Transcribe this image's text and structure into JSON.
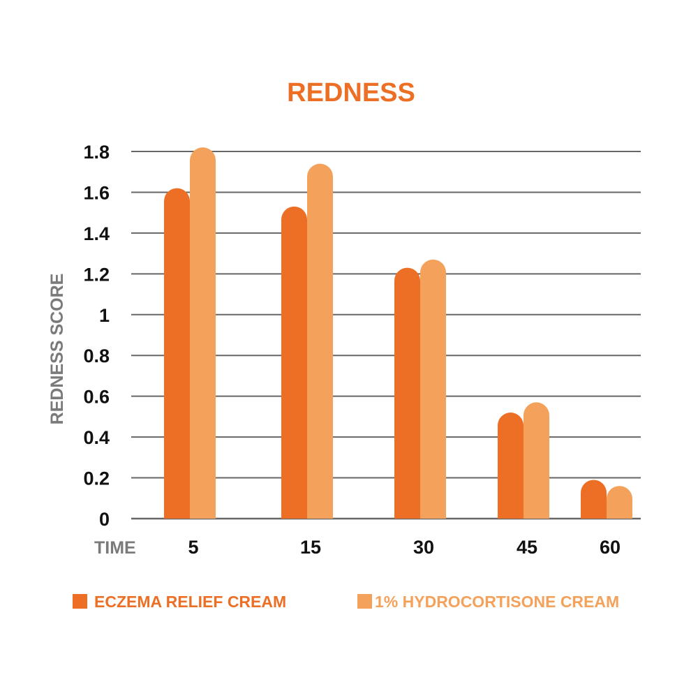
{
  "chart_data": {
    "type": "bar",
    "title": "REDNESS",
    "xlabel": "TIME",
    "ylabel": "REDNESS SCORE",
    "categories": [
      "5",
      "15",
      "30",
      "45",
      "60"
    ],
    "yticks": [
      "0",
      "0.2",
      "0.4",
      "0.6",
      "0.8",
      "1",
      "1.2",
      "1.4",
      "1.6",
      "1.8"
    ],
    "ylim": [
      0,
      1.8
    ],
    "grid": true,
    "legend_position": "bottom",
    "series": [
      {
        "name": "ECZEMA RELIEF CREAM",
        "color": "#ec6f25",
        "values": [
          1.62,
          1.53,
          1.23,
          0.52,
          0.19
        ]
      },
      {
        "name": "1% HYDROCORTISONE CREAM",
        "color": "#f4a15b",
        "values": [
          1.82,
          1.74,
          1.27,
          0.57,
          0.16
        ]
      }
    ],
    "colors": {
      "title": "#ec6f25",
      "grid": "#666666"
    }
  }
}
